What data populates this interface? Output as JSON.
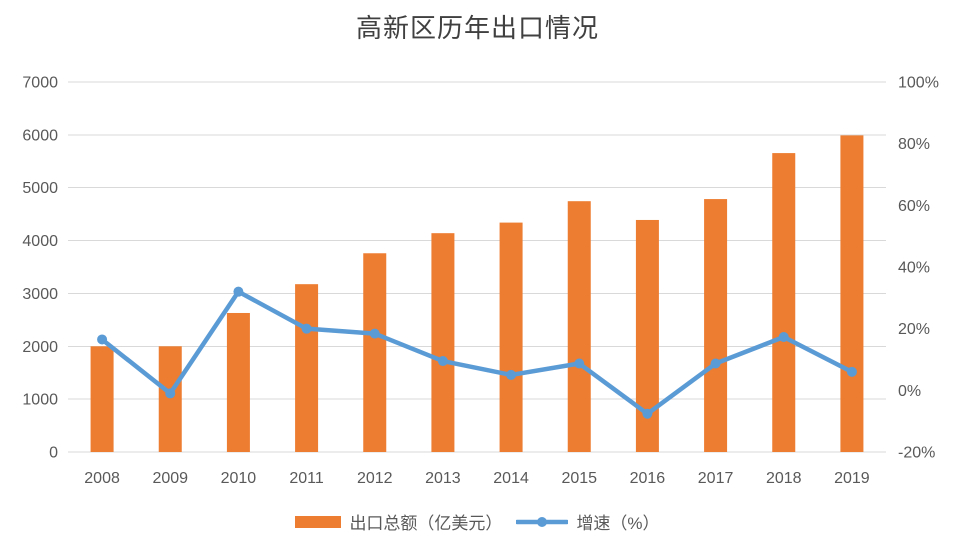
{
  "chart_data": {
    "type": "bar+line",
    "title": "高新区历年出口情况",
    "categories": [
      "2008",
      "2009",
      "2010",
      "2011",
      "2012",
      "2013",
      "2014",
      "2015",
      "2016",
      "2017",
      "2018",
      "2019"
    ],
    "series": [
      {
        "name": "出口总额（亿美元）",
        "type": "bar",
        "axis": "left",
        "color": "#ED7D31",
        "values": [
          2000,
          2000,
          2630,
          3175,
          3760,
          4140,
          4340,
          4745,
          4390,
          4785,
          5655,
          5990
        ]
      },
      {
        "name": "增速（%）",
        "type": "line",
        "axis": "right",
        "color": "#5B9BD5",
        "values": [
          16.5,
          -1.0,
          32.0,
          20.0,
          18.4,
          9.5,
          5.0,
          8.7,
          -7.6,
          8.7,
          17.3,
          6.0
        ]
      }
    ],
    "axes": {
      "left": {
        "min": 0,
        "max": 7000,
        "step": 1000,
        "ticks": [
          "0",
          "1000",
          "2000",
          "3000",
          "4000",
          "5000",
          "6000",
          "7000"
        ]
      },
      "right": {
        "min": -20,
        "max": 100,
        "step": 20,
        "ticks": [
          "-20%",
          "0%",
          "20%",
          "40%",
          "60%",
          "80%",
          "100%"
        ]
      },
      "x": {
        "ticks": [
          "2008",
          "2009",
          "2010",
          "2011",
          "2012",
          "2013",
          "2014",
          "2015",
          "2016",
          "2017",
          "2018",
          "2019"
        ]
      }
    },
    "grid": true,
    "legend_position": "bottom",
    "colors": {
      "grid": "#D9D9D9",
      "axis_text": "#595959",
      "title_text": "#404040"
    }
  }
}
